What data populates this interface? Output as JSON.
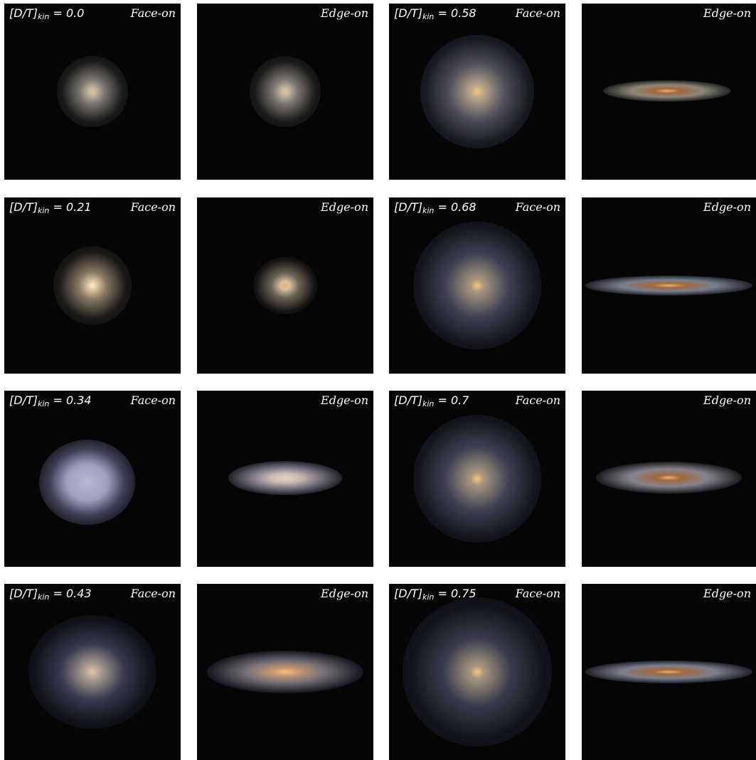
{
  "figure": {
    "rows": [
      {
        "left": {
          "dt_prefix": "[D/T]",
          "dt_sub": "kin",
          "dt_value": "= 0.0",
          "faceon": "Face-on",
          "edgeon": "Edge-on"
        },
        "right": {
          "dt_prefix": "[D/T]",
          "dt_sub": "kin",
          "dt_value": "= 0.58",
          "faceon": "Face-on",
          "edgeon": "Edge-on"
        }
      },
      {
        "left": {
          "dt_prefix": "[D/T]",
          "dt_sub": "kin",
          "dt_value": "= 0.21",
          "faceon": "Face-on",
          "edgeon": "Edge-on"
        },
        "right": {
          "dt_prefix": "[D/T]",
          "dt_sub": "kin",
          "dt_value": "= 0.68",
          "faceon": "Face-on",
          "edgeon": "Edge-on"
        }
      },
      {
        "left": {
          "dt_prefix": "[D/T]",
          "dt_sub": "kin",
          "dt_value": "= 0.34",
          "faceon": "Face-on",
          "edgeon": "Edge-on"
        },
        "right": {
          "dt_prefix": "[D/T]",
          "dt_sub": "kin",
          "dt_value": "= 0.7",
          "faceon": "Face-on",
          "edgeon": "Edge-on"
        }
      },
      {
        "left": {
          "dt_prefix": "[D/T]",
          "dt_sub": "kin",
          "dt_value": "= 0.43",
          "faceon": "Face-on",
          "edgeon": "Edge-on"
        },
        "right": {
          "dt_prefix": "[D/T]",
          "dt_sub": "kin",
          "dt_value": "= 0.75",
          "faceon": "Face-on",
          "edgeon": "Edge-on"
        }
      }
    ]
  }
}
